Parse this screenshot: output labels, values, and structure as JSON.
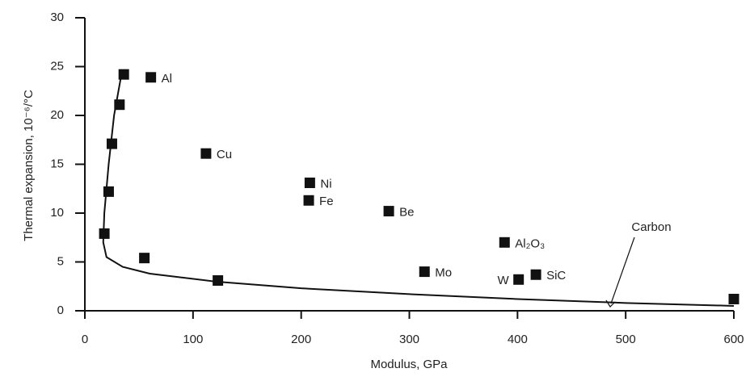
{
  "chart_data": {
    "type": "scatter",
    "x_label": "Modulus, GPa",
    "y_label": "Thermal expansion, 10⁻⁶/°C",
    "xlim": [
      0,
      600
    ],
    "xticks": [
      0,
      100,
      200,
      300,
      400,
      500,
      600
    ],
    "ylim": [
      0,
      30
    ],
    "yticks": [
      0,
      5,
      10,
      15,
      20,
      25,
      30
    ],
    "color": "#111111",
    "x": [
      36,
      61,
      32,
      25,
      22,
      18,
      55,
      123,
      112,
      208,
      207,
      281,
      388,
      314,
      401,
      417,
      600
    ],
    "values": [
      24.2,
      23.9,
      21.1,
      17.1,
      12.2,
      7.9,
      5.4,
      3.1,
      16.1,
      13.1,
      11.3,
      10.2,
      7.0,
      4.0,
      3.2,
      3.7,
      1.2
    ],
    "labels": [
      null,
      "Al",
      null,
      null,
      null,
      null,
      null,
      null,
      "Cu",
      "Ni",
      "Fe",
      "Be",
      "Al₂O₃",
      "Mo",
      "W",
      "SiC",
      null
    ],
    "curve": {
      "x": [
        33,
        27,
        22,
        18,
        17,
        20,
        35,
        60,
        120,
        200,
        300,
        400,
        500,
        600
      ],
      "values": [
        23.7,
        20,
        15,
        10,
        7,
        5.5,
        4.5,
        3.8,
        3,
        2.3,
        1.7,
        1.2,
        0.8,
        0.5
      ]
    },
    "annotation": "Carbon"
  }
}
